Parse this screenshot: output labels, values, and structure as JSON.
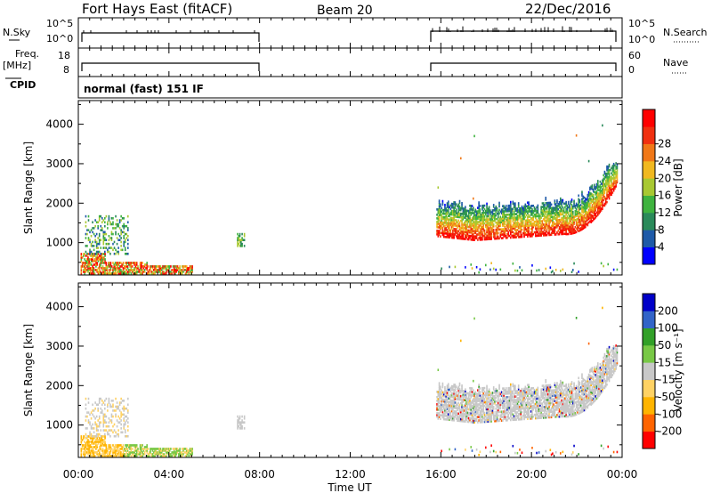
{
  "header": {
    "station": "Fort Hays East (fitACF)",
    "beam": "Beam 20",
    "date": "22/Dec/2016"
  },
  "panels": {
    "nsky": {
      "left_label": "N.Sky",
      "right_label": "N.Search",
      "left_ticks": [
        "10^5",
        "10^0"
      ],
      "right_ticks": [
        "10^5",
        "10^0"
      ]
    },
    "freq": {
      "left_label_1": "Freq.",
      "left_label_2": "[MHz]",
      "left_ticks": [
        "18",
        "8"
      ],
      "right_label": "Nave",
      "right_ticks": [
        "60",
        "0"
      ]
    },
    "cpid": {
      "label": "CPID",
      "value": "normal (fast) 151 IF"
    }
  },
  "colors": {
    "power_scale": [
      "#0000ff",
      "#1e5aa8",
      "#2a8a5a",
      "#3fb33f",
      "#a8c832",
      "#f0b820",
      "#f07818",
      "#f03010",
      "#ff0000"
    ],
    "velocity_scale": [
      "#ff0000",
      "#ff6400",
      "#ffb400",
      "#ffd264",
      "#c8c8c8",
      "#78c846",
      "#32a028",
      "#3264c8",
      "#0000c8"
    ]
  },
  "chart_data": [
    {
      "type": "heatmap",
      "xlabel": "",
      "ylabel": "Slant Range [km]",
      "xlim": [
        "00:00",
        "24:00"
      ],
      "ylim": [
        180,
        4600
      ],
      "yticks": [
        "1000",
        "2000",
        "3000",
        "4000"
      ],
      "xticks": [
        "00:00",
        "04:00",
        "08:00",
        "12:00",
        "16:00",
        "20:00",
        "00:00"
      ],
      "colorbar": {
        "label": "Power [dB]",
        "ticks": [
          "4",
          "8",
          "12",
          "16",
          "20",
          "24",
          "28"
        ],
        "range": [
          0,
          32
        ]
      },
      "data_coverage": [
        [
          "00:00",
          "08:00"
        ],
        [
          "15:45",
          "24:00"
        ]
      ]
    },
    {
      "type": "heatmap",
      "xlabel": "Time UT",
      "ylabel": "Slant Range [km]",
      "xlim": [
        "00:00",
        "24:00"
      ],
      "ylim": [
        180,
        4600
      ],
      "yticks": [
        "1000",
        "2000",
        "3000",
        "4000"
      ],
      "xticks": [
        "00:00",
        "04:00",
        "08:00",
        "12:00",
        "16:00",
        "20:00",
        "00:00"
      ],
      "colorbar": {
        "label": "Velocity [m s⁻¹]",
        "ticks": [
          "200",
          "100",
          "50",
          "15",
          "-15",
          "-50",
          "-100",
          "-200"
        ],
        "range": [
          -200,
          200
        ]
      },
      "data_coverage": [
        [
          "00:00",
          "08:00"
        ],
        [
          "15:45",
          "24:00"
        ]
      ]
    }
  ]
}
